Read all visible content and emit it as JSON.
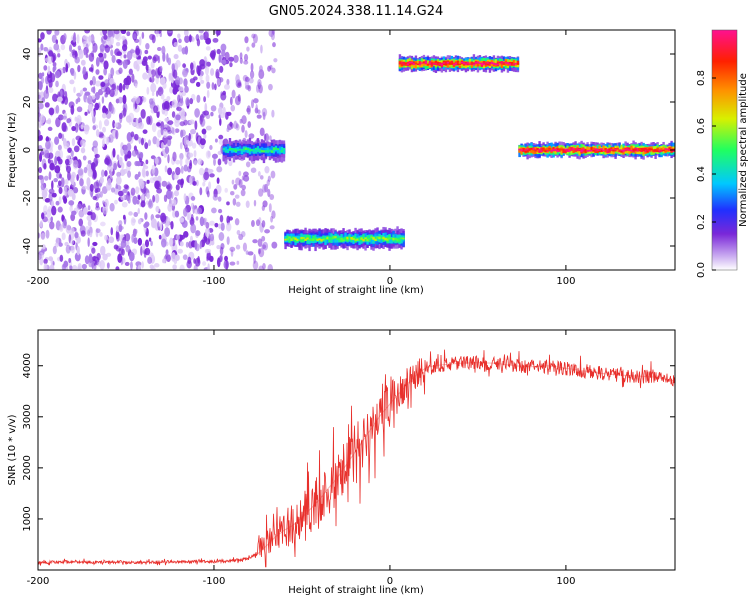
{
  "page_title": "GN05.2024.338.11.14.G24",
  "chart_data": [
    {
      "type": "heatmap",
      "title": "GN05.2024.338.11.14.G24",
      "xlabel": "Height of straight line (km)",
      "ylabel": "Frequency (Hz)",
      "xlim": [
        -200,
        162
      ],
      "ylim": [
        -50,
        50
      ],
      "xticks": [
        -200,
        -100,
        0,
        100
      ],
      "yticks": [
        -40,
        -20,
        0,
        20,
        40
      ],
      "colorbar": {
        "label": "Normalized spectral amplitude",
        "range": [
          0.0,
          1.0
        ],
        "ticks": [
          0.0,
          0.2,
          0.4,
          0.6,
          0.8
        ],
        "colors": [
          "#ffffff",
          "#c8a8f0",
          "#7a28d8",
          "#2030ff",
          "#00c8ff",
          "#20ff60",
          "#d8f000",
          "#ff9000",
          "#ff2000",
          "#ff1090"
        ]
      },
      "segments": [
        {
          "x_range": [
            -200,
            -75
          ],
          "freq_range": [
            -50,
            50
          ],
          "amplitude": 0.05,
          "pattern": "noise"
        },
        {
          "x_range": [
            -95,
            -60
          ],
          "freq_center": 0,
          "freq_half_width": 4,
          "amplitude": 0.35
        },
        {
          "x_range": [
            -60,
            8
          ],
          "freq_center": -37,
          "freq_half_width": 4,
          "amplitude": 0.45
        },
        {
          "x_range": [
            5,
            73
          ],
          "freq_center": 36,
          "freq_half_width": 3,
          "amplitude": 0.85
        },
        {
          "x_range": [
            73,
            162
          ],
          "freq_center": 0,
          "freq_half_width": 3,
          "amplitude": 0.85
        }
      ]
    },
    {
      "type": "line",
      "xlabel": "Height of straight line (km)",
      "ylabel": "SNR (10 * v/v)",
      "xlim": [
        -200,
        162
      ],
      "ylim": [
        0,
        4700
      ],
      "xticks": [
        -200,
        -100,
        0,
        100
      ],
      "yticks": [
        1000,
        2000,
        3000,
        4000
      ],
      "color": "#e8302c",
      "series": [
        {
          "x": [
            -200,
            -180,
            -160,
            -140,
            -120,
            -100,
            -90,
            -80,
            -75,
            -70,
            -65,
            -60,
            -55,
            -50,
            -45,
            -40,
            -35,
            -30,
            -25,
            -20,
            -15,
            -10,
            -5,
            0,
            5,
            10,
            15,
            20,
            25,
            30,
            40,
            50,
            60,
            70,
            80,
            90,
            100,
            110,
            120,
            130,
            140,
            150,
            162
          ],
          "values": [
            150,
            160,
            150,
            155,
            160,
            165,
            180,
            230,
            320,
            480,
            650,
            780,
            880,
            1020,
            1200,
            1380,
            1600,
            1800,
            2050,
            2300,
            2550,
            2800,
            3050,
            3250,
            3450,
            3650,
            3820,
            3950,
            4000,
            4020,
            4050,
            4060,
            4050,
            4000,
            3980,
            4000,
            3950,
            3900,
            3850,
            3820,
            3800,
            3780,
            3700
          ]
        }
      ]
    }
  ]
}
